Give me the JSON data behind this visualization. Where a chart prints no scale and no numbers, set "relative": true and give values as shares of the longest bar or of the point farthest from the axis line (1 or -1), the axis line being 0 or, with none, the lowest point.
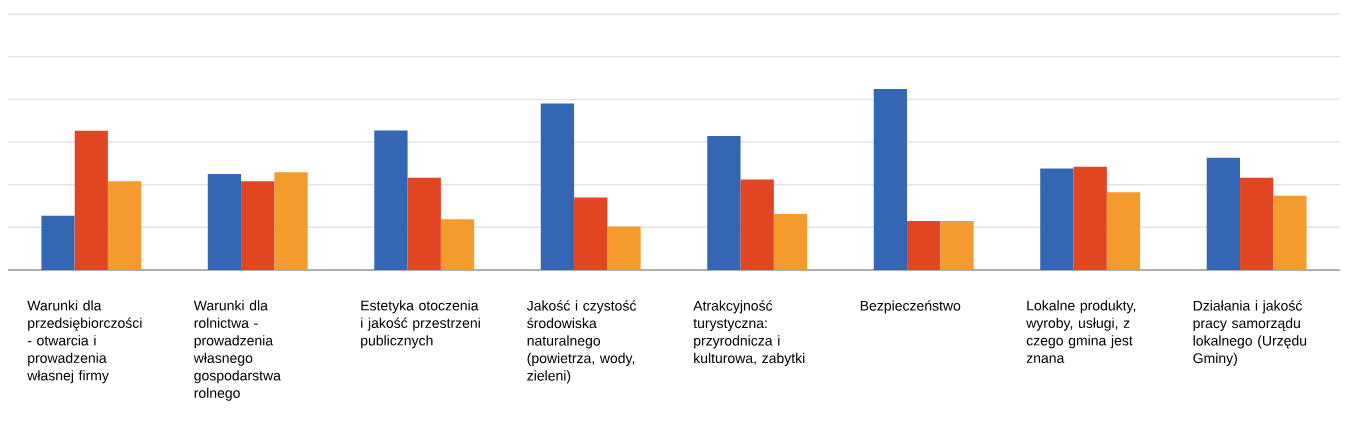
{
  "chart_data": {
    "type": "bar",
    "relative": true,
    "grid": "y",
    "categories": [
      "Warunki dla przedsiębiorczości - otwarcia i prowadzenia własnej firmy",
      "Warunki dla rolnictwa - prowadzenia własnego gospodarstwa rolnego",
      "Estetyka otoczenia i jakość przestrzeni publicznych",
      "Jakość i czystość środowiska naturalnego (powietrza, wody, zieleni)",
      "Atrakcyjność turystyczna: przyrodnicza i kulturowa, zabytki",
      "Bezpieczeństwo",
      "Lokalne produkty, wyroby, usługi, z czego gmina jest znana",
      "Działania i jakość pracy samorządu lokalnego (Urzędu Gminy)"
    ],
    "series": [
      {
        "color": "#3366b3",
        "values": [
          0.3,
          0.53,
          0.77,
          0.92,
          0.74,
          1,
          0.56,
          0.62
        ]
      },
      {
        "color": "#e24522",
        "values": [
          0.77,
          0.49,
          0.51,
          0.4,
          0.5,
          0.27,
          0.57,
          0.51
        ]
      },
      {
        "color": "#f59a2c",
        "values": [
          0.49,
          0.54,
          0.28,
          0.24,
          0.31,
          0.27,
          0.43,
          0.41
        ]
      }
    ]
  }
}
